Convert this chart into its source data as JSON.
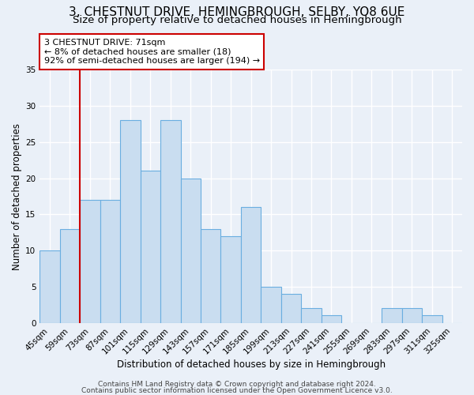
{
  "title1": "3, CHESTNUT DRIVE, HEMINGBROUGH, SELBY, YO8 6UE",
  "title2": "Size of property relative to detached houses in Hemingbrough",
  "xlabel": "Distribution of detached houses by size in Hemingbrough",
  "ylabel": "Number of detached properties",
  "categories": [
    "45sqm",
    "59sqm",
    "73sqm",
    "87sqm",
    "101sqm",
    "115sqm",
    "129sqm",
    "143sqm",
    "157sqm",
    "171sqm",
    "185sqm",
    "199sqm",
    "213sqm",
    "227sqm",
    "241sqm",
    "255sqm",
    "269sqm",
    "283sqm",
    "297sqm",
    "311sqm",
    "325sqm"
  ],
  "values": [
    10,
    13,
    17,
    17,
    28,
    21,
    28,
    20,
    13,
    12,
    16,
    5,
    4,
    2,
    1,
    0,
    0,
    2,
    2,
    1,
    0
  ],
  "bar_color": "#c9ddf0",
  "bar_edge_color": "#6aaee0",
  "bar_width": 1.0,
  "vline_x_index": 2,
  "vline_color": "#cc0000",
  "annotation_line1": "3 CHESTNUT DRIVE: 71sqm",
  "annotation_line2": "← 8% of detached houses are smaller (18)",
  "annotation_line3": "92% of semi-detached houses are larger (194) →",
  "annotation_box_color": "white",
  "annotation_box_edge": "#cc0000",
  "footer1": "Contains HM Land Registry data © Crown copyright and database right 2024.",
  "footer2": "Contains public sector information licensed under the Open Government Licence v3.0.",
  "ylim": [
    0,
    35
  ],
  "yticks": [
    0,
    5,
    10,
    15,
    20,
    25,
    30,
    35
  ],
  "background_color": "#eaf0f8",
  "grid_color": "#ffffff",
  "title1_fontsize": 11,
  "title2_fontsize": 9.5,
  "xlabel_fontsize": 8.5,
  "ylabel_fontsize": 8.5,
  "tick_fontsize": 7.5,
  "footer_fontsize": 6.5
}
